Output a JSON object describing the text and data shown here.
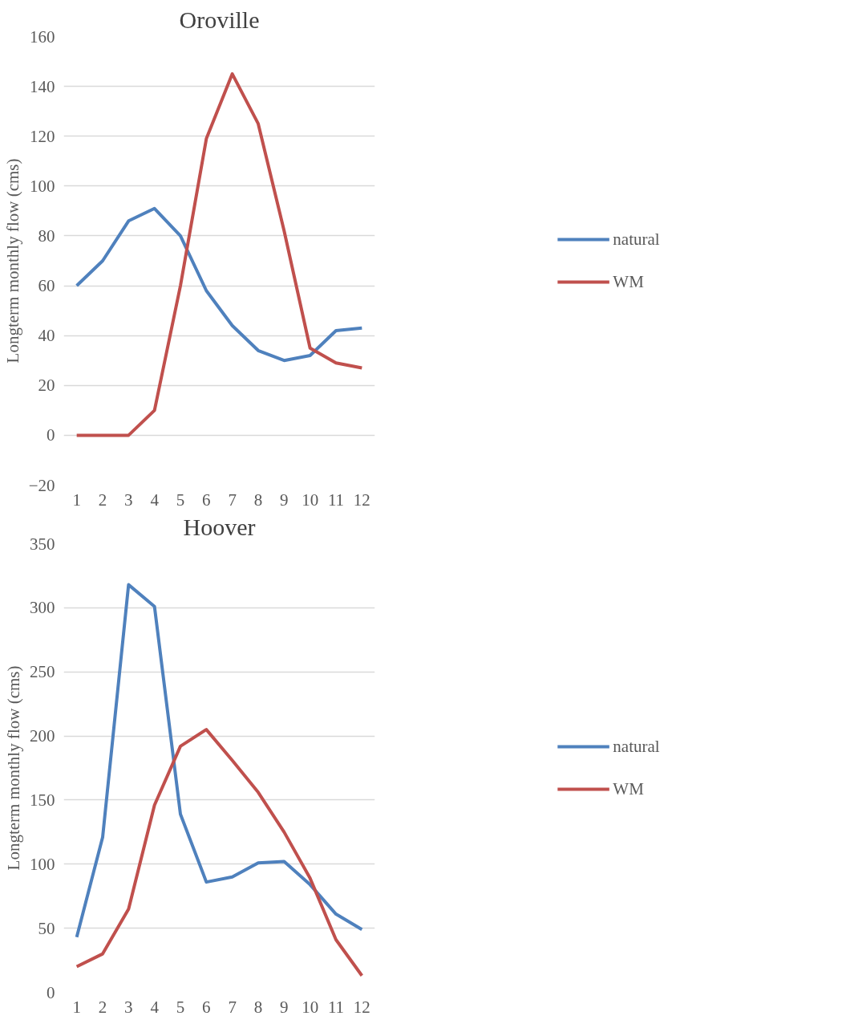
{
  "chart_data": [
    {
      "type": "line",
      "title": "Oroville",
      "ylabel": "Longterm monthly flow (cms)",
      "x": [
        1,
        2,
        3,
        4,
        5,
        6,
        7,
        8,
        9,
        10,
        11,
        12
      ],
      "xlim": [
        0.5,
        12.5
      ],
      "xticks": [
        1,
        2,
        3,
        4,
        5,
        6,
        7,
        8,
        9,
        10,
        11,
        12
      ],
      "ylim": [
        -20,
        160
      ],
      "yticks": [
        -20,
        0,
        20,
        40,
        60,
        80,
        100,
        120,
        140,
        160
      ],
      "grid": "y",
      "legend": "right",
      "marker": "none",
      "series": [
        {
          "name": "natural",
          "color": "#4f81bd",
          "values": [
            60,
            70,
            86,
            91,
            80,
            58,
            44,
            34,
            30,
            32,
            42,
            43
          ]
        },
        {
          "name": "WM",
          "color": "#c0504d",
          "values": [
            0,
            0,
            0,
            10,
            60,
            119,
            145,
            125,
            82,
            35,
            29,
            27
          ]
        }
      ]
    },
    {
      "type": "line",
      "title": "Hoover",
      "ylabel": "Longterm monthly flow (cms)",
      "x": [
        1,
        2,
        3,
        4,
        5,
        6,
        7,
        8,
        9,
        10,
        11,
        12
      ],
      "xlim": [
        0.5,
        12.5
      ],
      "xticks": [
        1,
        2,
        3,
        4,
        5,
        6,
        7,
        8,
        9,
        10,
        11,
        12
      ],
      "ylim": [
        0,
        350
      ],
      "yticks": [
        0,
        50,
        100,
        150,
        200,
        250,
        300,
        350
      ],
      "grid": "y",
      "legend": "right",
      "marker": "none",
      "series": [
        {
          "name": "natural",
          "color": "#4f81bd",
          "values": [
            43,
            121,
            318,
            301,
            139,
            86,
            90,
            101,
            102,
            84,
            61,
            49
          ]
        },
        {
          "name": "WM",
          "color": "#c0504d",
          "values": [
            20,
            30,
            65,
            146,
            192,
            205,
            181,
            156,
            125,
            89,
            41,
            13
          ]
        }
      ]
    }
  ]
}
